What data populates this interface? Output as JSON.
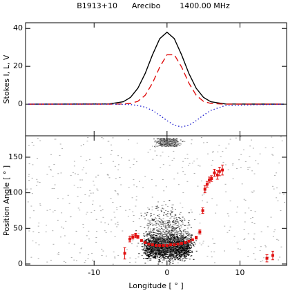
{
  "chart_data": [
    {
      "type": "line",
      "title": "B1913+10      Arecibo        1400.00 MHz",
      "ylabel": "Stokes I, L, V",
      "x": [
        -19,
        -8,
        -6,
        -5,
        -4,
        -3,
        -2,
        -1,
        0,
        1,
        2,
        3,
        4,
        5,
        6,
        8,
        16
      ],
      "series": [
        {
          "name": "I",
          "color": "#000000",
          "style": "solid",
          "values": [
            0,
            0.1,
            1.3,
            3.6,
            8.4,
            16.2,
            26,
            34.6,
            38,
            34.6,
            26,
            16.2,
            8.4,
            3.6,
            1.3,
            0.1,
            0
          ]
        },
        {
          "name": "L",
          "color": "#e01010",
          "style": "dashed",
          "values": [
            0,
            0,
            0.1,
            0.4,
            1.5,
            4.7,
            11.1,
            19.6,
            26.1,
            26.1,
            19.6,
            11.1,
            4.7,
            1.5,
            0.4,
            0,
            0
          ]
        },
        {
          "name": "V",
          "color": "#2020d0",
          "style": "dotted",
          "values": [
            0,
            0,
            -0.1,
            -0.2,
            -0.7,
            -1.6,
            -3.3,
            -5.8,
            -8.7,
            -11.1,
            -12,
            -11.1,
            -8.7,
            -5.8,
            -3.3,
            -0.7,
            0
          ]
        }
      ],
      "xlim": [
        -19.4,
        16.4
      ],
      "xticks": [
        -10,
        0,
        10
      ],
      "ylim": [
        -16.7,
        43
      ],
      "yticks": [
        0,
        20,
        40
      ]
    },
    {
      "type": "scatter",
      "xlabel": "Longitude [ ° ]",
      "ylabel": "Position Angle [ ° ]",
      "color": "#e01010",
      "x": [
        -5.8,
        -5.1,
        -4.7,
        -4.3,
        -4,
        -3.5,
        -3,
        -2.5,
        -2,
        -1.5,
        -1,
        -0.5,
        0,
        0.5,
        1,
        1.5,
        2,
        2.5,
        3,
        3.5,
        4,
        4.5,
        4.9,
        5.2,
        5.5,
        5.8,
        6.1,
        6.5,
        6.9,
        7.2,
        7.6,
        13.7,
        14.5
      ],
      "values": [
        15,
        35,
        38,
        40,
        38,
        33,
        30,
        28,
        27,
        26,
        26,
        26,
        26,
        27,
        27,
        28,
        29,
        30,
        32,
        34,
        37,
        45,
        75,
        105,
        112,
        118,
        120,
        128,
        125,
        130,
        132,
        8,
        12
      ],
      "errors": [
        8,
        4,
        3,
        3,
        2,
        1,
        1,
        1,
        1,
        1,
        1,
        1,
        1,
        1,
        1,
        1,
        1,
        1,
        1,
        1,
        2,
        3,
        4,
        5,
        4,
        4,
        4,
        5,
        6,
        6,
        7,
        5,
        6
      ],
      "xlim": [
        -19.4,
        16.4
      ],
      "xticks": [
        -10,
        0,
        10
      ],
      "ylim": [
        -2,
        180
      ],
      "yticks": [
        0,
        50,
        100,
        150
      ]
    }
  ]
}
